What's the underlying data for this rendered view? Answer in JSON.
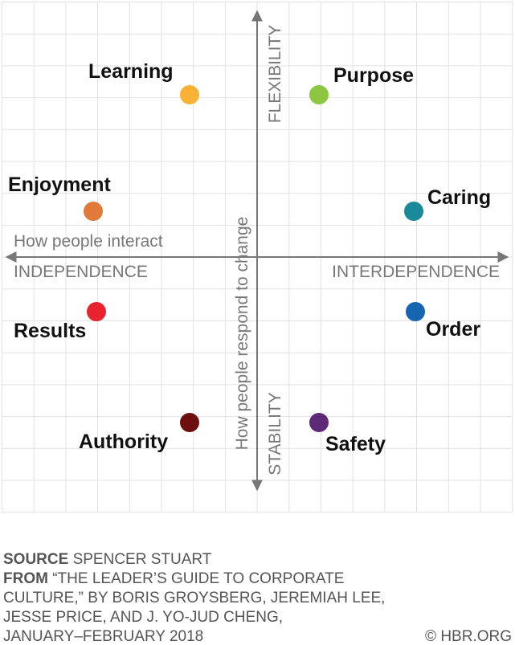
{
  "axes": {
    "top": "FLEXIBILITY",
    "bottom": "STABILITY",
    "vertical_title": "How people respond to change",
    "horizontal_title": "How people interact",
    "left": "INDEPENDENCE",
    "right": "INTERDEPENDENCE"
  },
  "nodes": [
    {
      "label": "Learning",
      "color": "#f9b233"
    },
    {
      "label": "Purpose",
      "color": "#8dc63f"
    },
    {
      "label": "Enjoyment",
      "color": "#e07a3a"
    },
    {
      "label": "Caring",
      "color": "#1a8a9a"
    },
    {
      "label": "Results",
      "color": "#e8232f"
    },
    {
      "label": "Order",
      "color": "#1565b0"
    },
    {
      "label": "Authority",
      "color": "#6d0f0f"
    },
    {
      "label": "Safety",
      "color": "#5e2a78"
    }
  ],
  "footer": {
    "source_label": "SOURCE",
    "source": "SPENCER STUART",
    "from_label": "FROM",
    "from_lines": [
      "“THE LEADER’S GUIDE TO CORPORATE",
      "CULTURE,” BY BORIS GROYSBERG, JEREMIAH LEE,",
      "JESSE PRICE, AND J. YO-JUD CHENG,",
      "JANUARY–FEBRUARY 2018"
    ],
    "copyright": "© HBR.ORG"
  }
}
